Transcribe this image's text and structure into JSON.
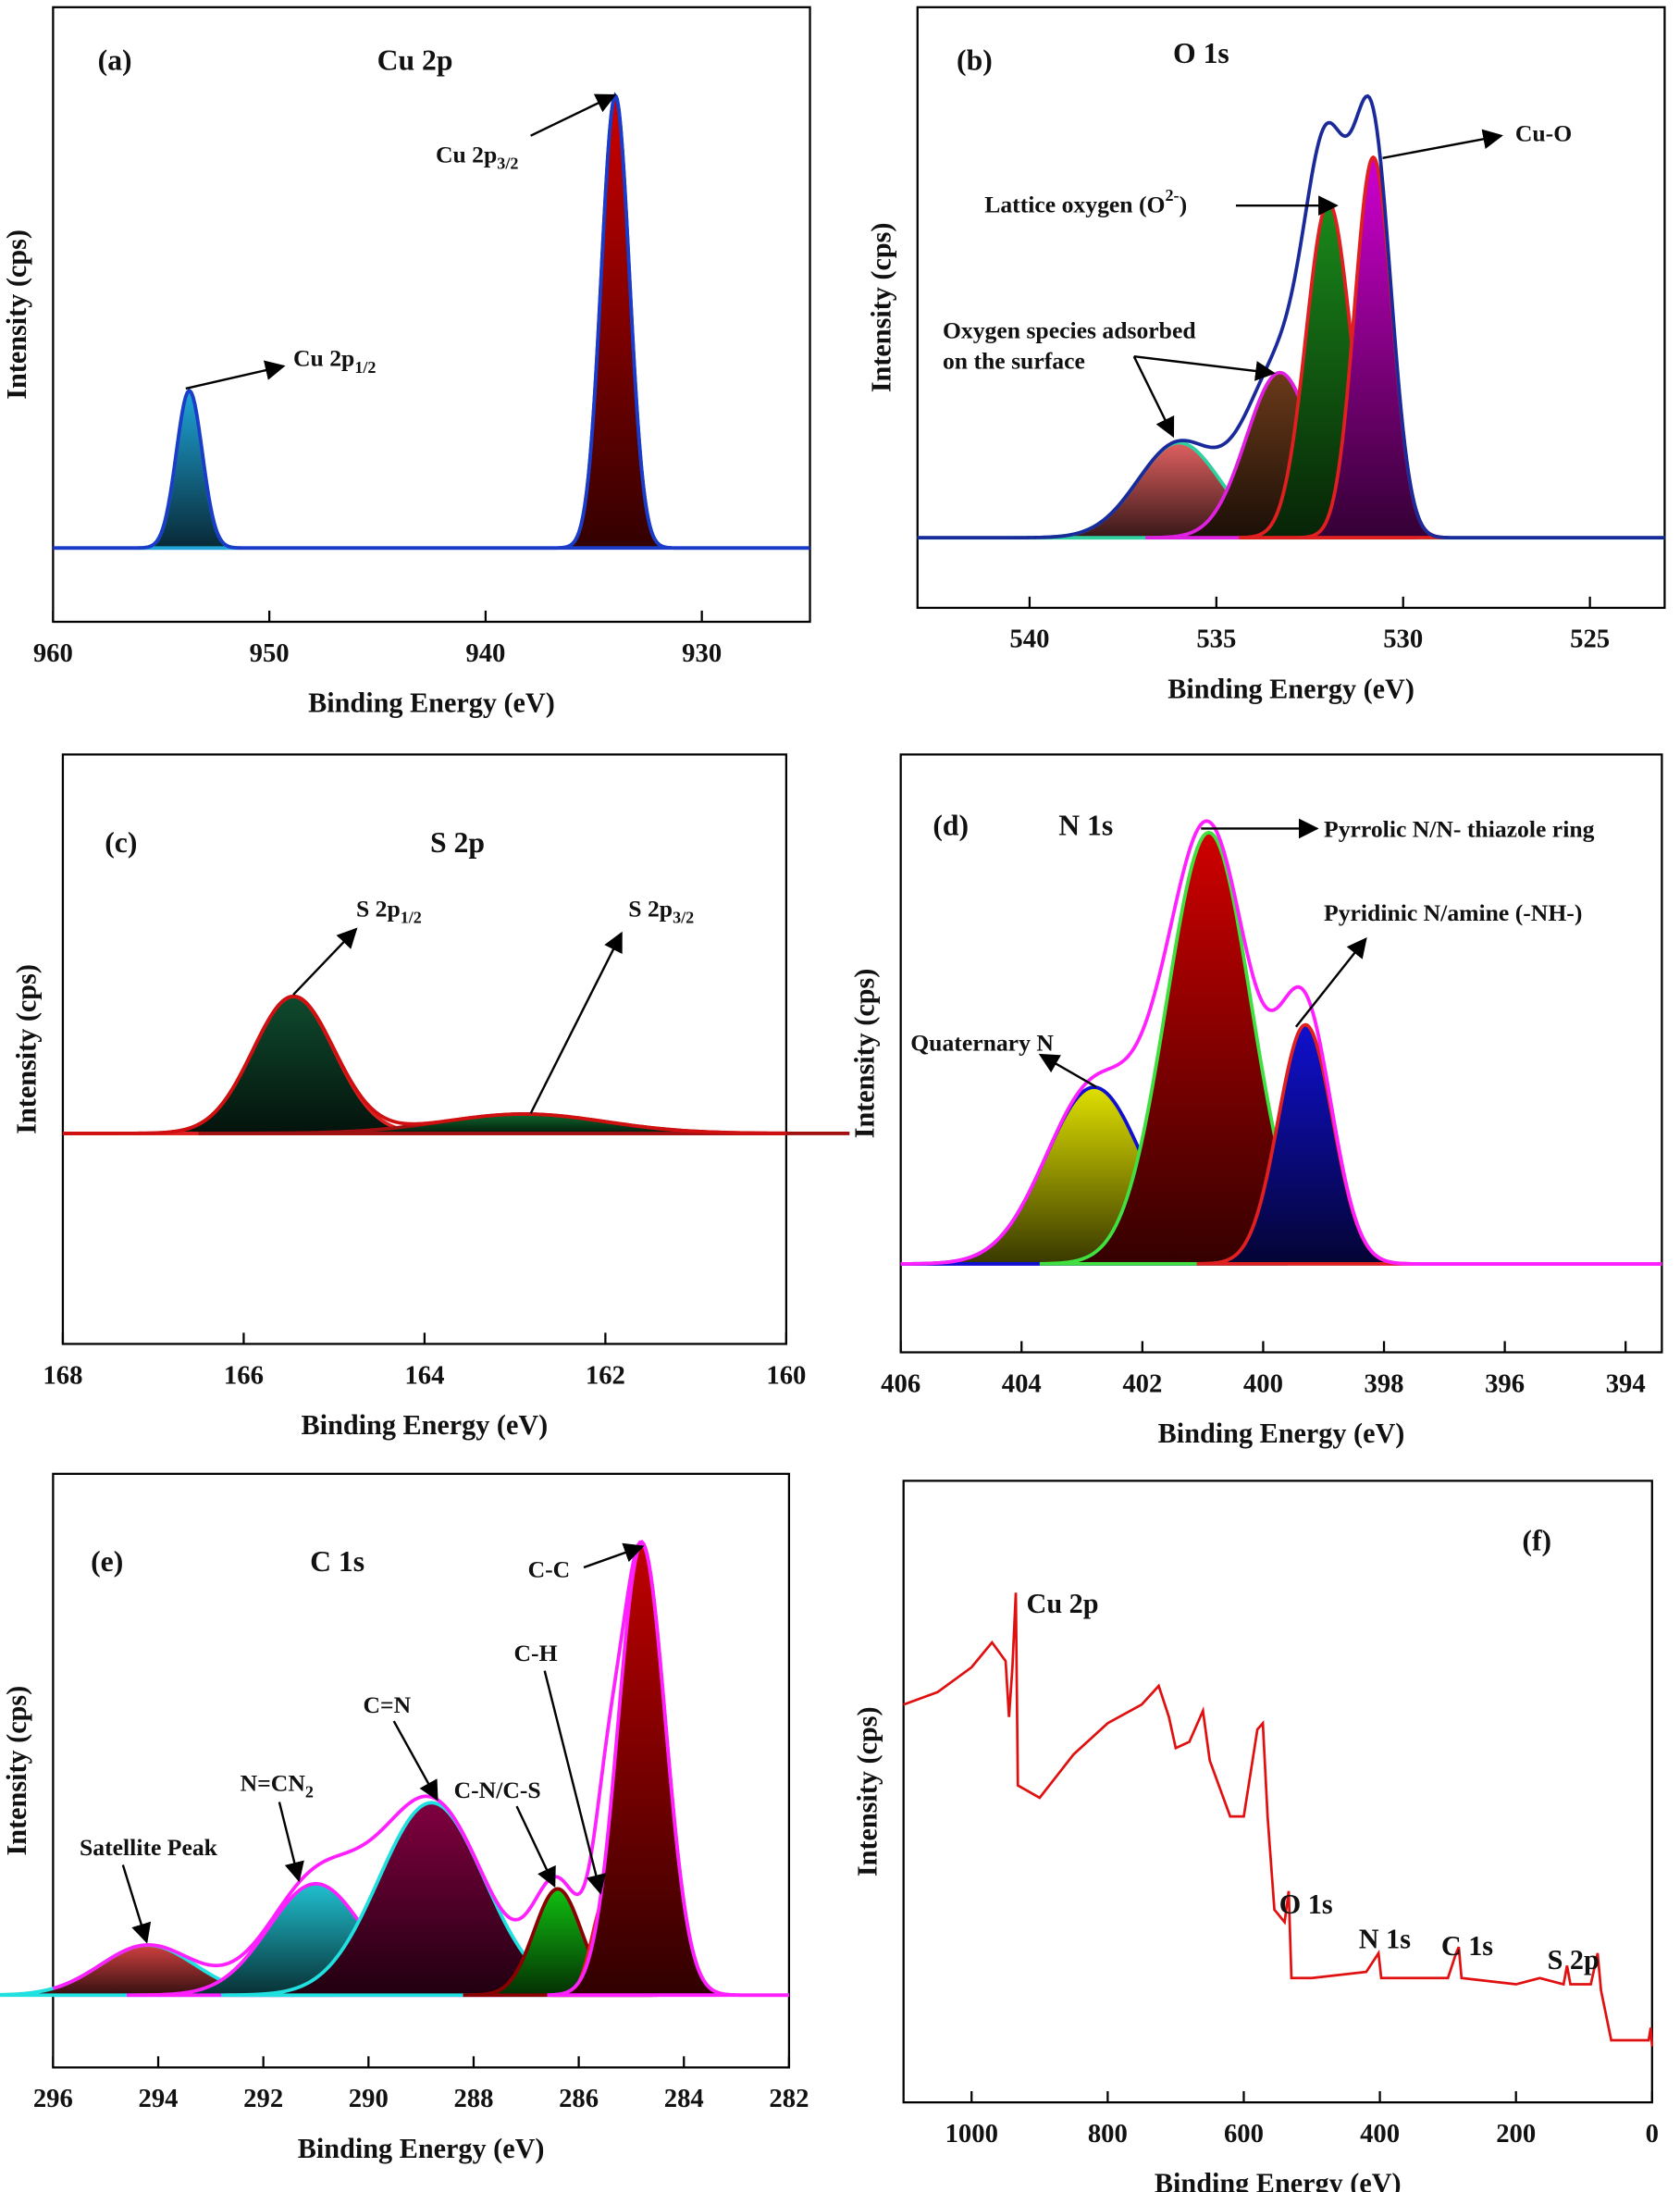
{
  "chart_data": [
    {
      "type": "peakfit",
      "panel_label": "(a)",
      "title": "Cu 2p",
      "xlabel": "Binding Energy (eV)",
      "ylabel": "Intensity (cps)",
      "xlim": [
        960,
        925
      ],
      "xticks": [
        960,
        950,
        940,
        930
      ],
      "ylim": [
        -15,
        110
      ],
      "envelope_color": "#1a3cc8",
      "baseline_color": "#1a3cc8",
      "peaks": [
        {
          "center": 953.7,
          "height": 32,
          "sigma": 0.6,
          "color": "#1fa5d8",
          "edge": "#1fa5d8"
        },
        {
          "center": 934.0,
          "height": 92,
          "sigma": 0.65,
          "color": "#cc0000",
          "edge": "#1a3cc8"
        }
      ],
      "annotations": [
        {
          "text": "Cu 2p",
          "sub": "1/2"
        },
        {
          "text": "Cu 2p",
          "sub": "3/2"
        }
      ]
    },
    {
      "type": "peakfit",
      "panel_label": "(b)",
      "title": "O 1s",
      "xlabel": "Binding Energy (eV)",
      "ylabel": "Intensity (cps)",
      "xlim": [
        543,
        523
      ],
      "xticks": [
        540,
        535,
        530,
        525
      ],
      "ylim": [
        -14,
        106
      ],
      "envelope_color": "#1a2a9a",
      "baseline_color": "#30d0a0",
      "peaks": [
        {
          "center": 536.0,
          "height": 19,
          "sigma": 1.1,
          "color": "#e06060",
          "edge": "#30d0a0"
        },
        {
          "center": 533.3,
          "height": 33,
          "sigma": 0.9,
          "color": "#6b3a1a",
          "edge": "#e020e0"
        },
        {
          "center": 532.0,
          "height": 67,
          "sigma": 0.6,
          "color": "#1a8a1a",
          "edge": "#e02020"
        },
        {
          "center": 530.8,
          "height": 76,
          "sigma": 0.5,
          "color": "#d000d0",
          "edge": "#e02020"
        }
      ],
      "annotations": [
        {
          "text": "Cu-O"
        },
        {
          "text": "Lattice oxygen (O",
          "sup": "2-",
          "tail": ")"
        },
        {
          "text": "Oxygen species adsorbed",
          "line2": "on the surface"
        }
      ]
    },
    {
      "type": "peakfit",
      "panel_label": "(c)",
      "title": "S 2p",
      "xlabel": "Binding Energy (eV)",
      "ylabel": "Intensity (cps)",
      "xlim": [
        168,
        160
      ],
      "xticks": [
        168,
        166,
        164,
        162,
        160
      ],
      "ylim": [
        -50,
        90
      ],
      "envelope_color": "#d01010",
      "baseline_color": "#d01010",
      "peaks": [
        {
          "center": 165.45,
          "height": 32.5,
          "sigma": 0.45,
          "color": "#0f4a2e",
          "edge": "#e02020"
        },
        {
          "center": 162.9,
          "height": 4.6,
          "sigma": 0.9,
          "color": "#0f6a2e",
          "edge": "#a01010"
        }
      ],
      "annotations": [
        {
          "text": "S 2p",
          "sub": "1/2"
        },
        {
          "text": "S 2p",
          "sub": "3/2"
        }
      ]
    },
    {
      "type": "peakfit",
      "panel_label": "(d)",
      "title": "N 1s",
      "xlabel": "Binding Energy (eV)",
      "ylabel": "Intensity (cps)",
      "xlim": [
        406,
        393.4
      ],
      "xticks": [
        406,
        404,
        402,
        400,
        398,
        396,
        394
      ],
      "ylim": [
        -17,
        98
      ],
      "envelope_color": "#ff20ff",
      "baseline_color": "#ff20ff",
      "peaks": [
        {
          "center": 402.8,
          "height": 34,
          "sigma": 0.8,
          "color": "#e0e000",
          "edge": "#1010d0"
        },
        {
          "center": 400.9,
          "height": 83,
          "sigma": 0.7,
          "color": "#d00000",
          "edge": "#40e040"
        },
        {
          "center": 399.3,
          "height": 46,
          "sigma": 0.45,
          "color": "#1010d0",
          "edge": "#e02020"
        }
      ],
      "annotations": [
        {
          "text": "Pyrrolic N/N- thiazole ring"
        },
        {
          "text": "Pyridinic N/amine (-NH-)"
        },
        {
          "text": "Quaternary N"
        }
      ]
    },
    {
      "type": "peakfit",
      "panel_label": "(e)",
      "title": "C 1s",
      "xlabel": "Binding Energy (eV)",
      "ylabel": "Intensity (cps)",
      "xlim": [
        296,
        282
      ],
      "xticks": [
        296,
        294,
        292,
        290,
        288,
        286,
        284,
        282
      ],
      "ylim": [
        -14,
        101
      ],
      "envelope_color": "#ff20ff",
      "baseline_color": "#ff20ff",
      "peaks": [
        {
          "center": 294.2,
          "height": 9.7,
          "sigma": 0.9,
          "color": "#d04040",
          "edge": "#20e0e0"
        },
        {
          "center": 291.0,
          "height": 21.6,
          "sigma": 0.9,
          "color": "#20c0d0",
          "edge": "#ff20ff"
        },
        {
          "center": 288.8,
          "height": 37.3,
          "sigma": 1.0,
          "color": "#800040",
          "edge": "#20e0e0"
        },
        {
          "center": 286.4,
          "height": 20.6,
          "sigma": 0.45,
          "color": "#10c010",
          "edge": "#8b0000"
        },
        {
          "center": 285.5,
          "height": 18.4,
          "sigma": 0.25,
          "color": "#1010c0",
          "edge": "#e02020"
        },
        {
          "center": 284.8,
          "height": 87.4,
          "sigma": 0.45,
          "color": "#c00000",
          "edge": "#ff20ff"
        }
      ],
      "annotations": [
        {
          "text": "C-C"
        },
        {
          "text": "C-H"
        },
        {
          "text": "C-N/C-S"
        },
        {
          "text": "C=N"
        },
        {
          "text": "N=CN",
          "sub": "2"
        },
        {
          "text": "Satellite Peak"
        }
      ]
    },
    {
      "type": "line",
      "panel_label": "(f)",
      "xlabel": "Binding Energy (eV)",
      "ylabel": "Intensity (cps)",
      "xlim": [
        1100,
        0
      ],
      "xticks": [
        1000,
        800,
        600,
        400,
        200,
        0
      ],
      "ylim": [
        0,
        100
      ],
      "color": "#e01010",
      "x": [
        1100,
        1050,
        1000,
        970,
        950,
        945,
        940,
        935,
        932,
        900,
        850,
        800,
        750,
        725,
        710,
        700,
        680,
        660,
        650,
        620,
        600,
        580,
        572,
        565,
        555,
        540,
        534,
        530,
        500,
        420,
        402,
        398,
        300,
        288,
        284,
        280,
        200,
        165,
        130,
        125,
        120,
        90,
        80,
        75,
        60,
        30,
        5,
        2,
        0
      ],
      "values": [
        64,
        66,
        70,
        74,
        71,
        62,
        70,
        82,
        51,
        49,
        56,
        61,
        64,
        67,
        62,
        57,
        58,
        63,
        55,
        46,
        46,
        60,
        61,
        46,
        31,
        29,
        34,
        20,
        20,
        21,
        24,
        20,
        20,
        24,
        25,
        20,
        19,
        20,
        19,
        22,
        19,
        19,
        24,
        18,
        10,
        10,
        10,
        12,
        9
      ],
      "annotations": [
        {
          "text": "Cu 2p"
        },
        {
          "text": "O 1s"
        },
        {
          "text": "N 1s"
        },
        {
          "text": "C 1s"
        },
        {
          "text": "S 2p"
        }
      ]
    }
  ]
}
